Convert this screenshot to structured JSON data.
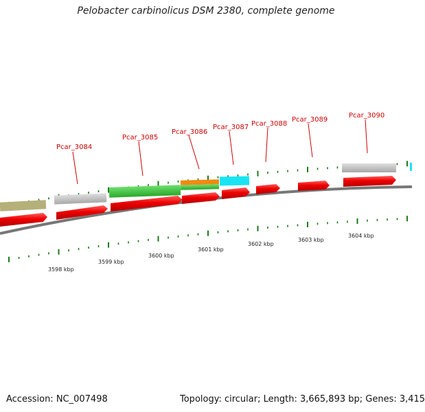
{
  "title": "Pelobacter carbinolicus DSM 2380, complete genome",
  "footer": {
    "accession": "Accession: NC_007498",
    "summary": "Topology: circular; Length: 3,665,893 bp; Genes: 3,415"
  },
  "scale_labels": [
    "3598 kbp",
    "3599 kbp",
    "3600 kbp",
    "3601 kbp",
    "3602 kbp",
    "3603 kbp",
    "3604 kbp"
  ],
  "gene_labels": [
    "Pcar_3084",
    "Pcar_3085",
    "Pcar_3086",
    "Pcar_3087",
    "Pcar_3088",
    "Pcar_3089",
    "Pcar_3090"
  ],
  "colors": {
    "cds": "#ee0000",
    "olive": "#b5b07a",
    "grey": "#c4c4c4",
    "green": "#3cc43c",
    "orange": "#f08a10",
    "cyan": "#19e4f4",
    "backbone": "#777777",
    "ticks": "#1a7a1a",
    "label": "#cc0000"
  }
}
